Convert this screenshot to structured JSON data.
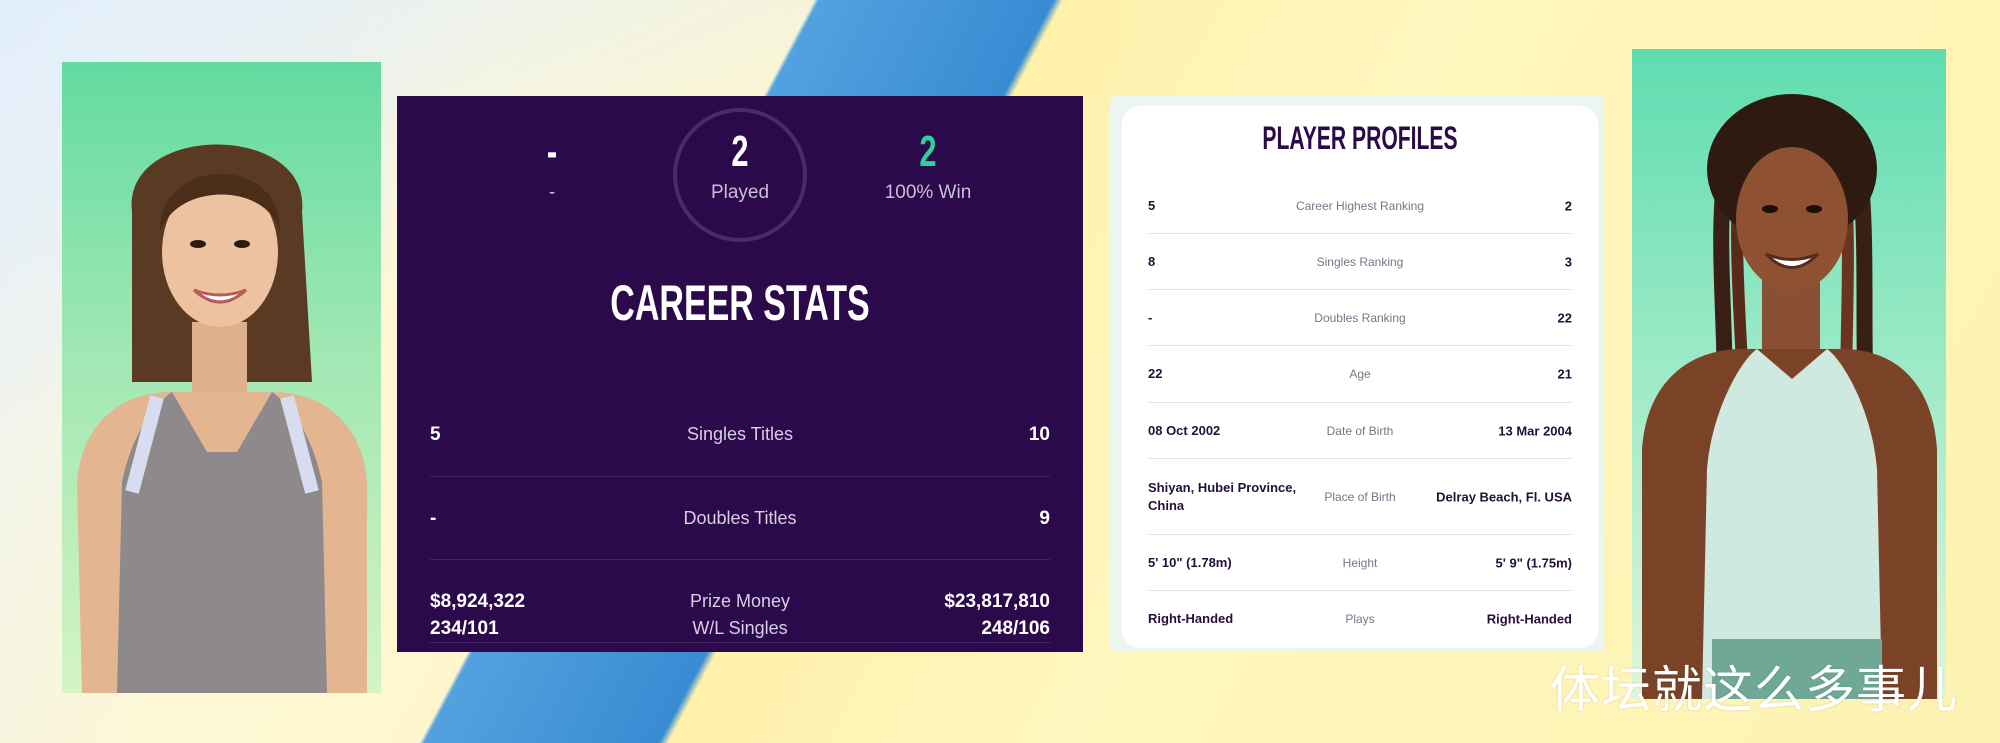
{
  "colors": {
    "panel_bg": "#2a0a4a",
    "win_green": "#2ed39a",
    "profile_title": "#2a0a4a"
  },
  "left_player_photo": {
    "icon": "player-photo-left"
  },
  "right_player_photo": {
    "icon": "player-photo-right"
  },
  "head_to_head": {
    "left_value": "-",
    "left_sub": "-",
    "played_value": "2",
    "played_label": "Played",
    "right_value": "2",
    "right_sub": "100% Win"
  },
  "career_stats": {
    "title": "CAREER STATS",
    "rows": [
      {
        "left": "5",
        "label": "Singles Titles",
        "right": "10"
      },
      {
        "left": "-",
        "label": "Doubles Titles",
        "right": "9"
      },
      {
        "left": "$8,924,322",
        "label": "Prize Money",
        "right": "$23,817,810"
      },
      {
        "left": "234/101",
        "label": "W/L Singles",
        "right": "248/106"
      }
    ]
  },
  "player_profiles": {
    "title": "PLAYER PROFILES",
    "rows": [
      {
        "left": "5",
        "label": "Career Highest Ranking",
        "right": "2"
      },
      {
        "left": "8",
        "label": "Singles Ranking",
        "right": "3"
      },
      {
        "left": "-",
        "label": "Doubles Ranking",
        "right": "22"
      },
      {
        "left": "22",
        "label": "Age",
        "right": "21"
      },
      {
        "left": "08 Oct 2002",
        "label": "Date of Birth",
        "right": "13 Mar 2004"
      },
      {
        "left": "Shiyan, Hubei Province, China",
        "label": "Place of Birth",
        "right": "Delray Beach, Fl. USA"
      },
      {
        "left": "5' 10\" (1.78m)",
        "label": "Height",
        "right": "5' 9\" (1.75m)"
      },
      {
        "left": "Right-Handed",
        "label": "Plays",
        "right": "Right-Handed"
      }
    ]
  },
  "watermark": "体坛就这么多事儿"
}
